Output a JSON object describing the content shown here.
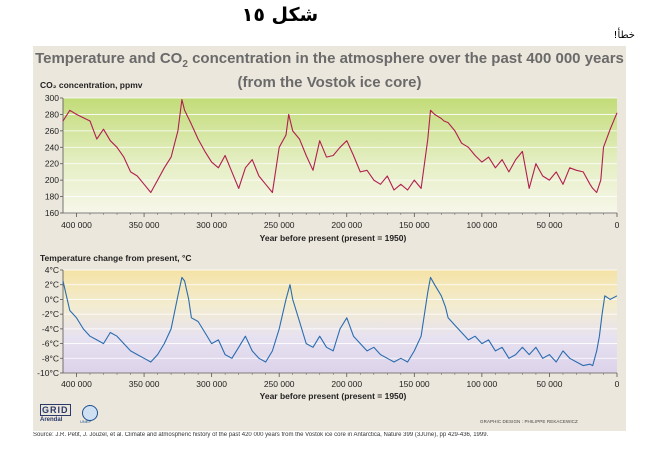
{
  "header": {
    "figure_label": "شكل ١٥",
    "error_label": "خطأ!"
  },
  "figure": {
    "title_line1_pre": "Temperature and CO",
    "title_line1_sub": "2",
    "title_line1_post": " concentration in the atmosphere over the past 400 000 years",
    "title_line2": "(from the Vostok ice core)",
    "source": "Source: J.R. Petit, J. Jouzel, et al. Climate and atmospheric history of the past 420 000 years from the Vostok ice core in Antarctica, Nature 399 (3JUne), pp 429-436, 1999.",
    "credit": "GRAPHIC DESIGN : PHILIPPE REKACEWICZ",
    "logo_grid": "GRID",
    "logo_arendal": "Arendal",
    "logo_unep": "UNEP",
    "colors": {
      "co2_line": "#b21e50",
      "temp_line": "#2a6cb0",
      "text": "#6a6a6a"
    }
  },
  "chart_data": [
    {
      "type": "line",
      "ylabel": "CO₂ concentration, ppmv",
      "xlabel": "Year before present (present = 1950)",
      "xlim": [
        410000,
        0
      ],
      "ylim": [
        160,
        300
      ],
      "yticks": [
        "160",
        "180",
        "200",
        "220",
        "240",
        "260",
        "280",
        "300"
      ],
      "xticks": [
        "400 000",
        "350 000",
        "300 000",
        "250 000",
        "200 000",
        "150 000",
        "100 000",
        "50 000",
        "0"
      ],
      "grid": true,
      "series": [
        {
          "x": [
            410000,
            405000,
            400000,
            395000,
            390000,
            385000,
            380000,
            375000,
            370000,
            365000,
            360000,
            355000,
            350000,
            345000,
            340000,
            335000,
            330000,
            325000,
            322000,
            320000,
            315000,
            310000,
            305000,
            300000,
            295000,
            290000,
            285000,
            280000,
            275000,
            270000,
            265000,
            260000,
            255000,
            250000,
            245000,
            243000,
            240000,
            235000,
            230000,
            225000,
            220000,
            215000,
            210000,
            205000,
            200000,
            195000,
            190000,
            185000,
            180000,
            175000,
            170000,
            165000,
            160000,
            155000,
            150000,
            145000,
            140000,
            138000,
            135000,
            130000,
            128000,
            125000,
            120000,
            115000,
            110000,
            105000,
            100000,
            95000,
            90000,
            85000,
            80000,
            75000,
            70000,
            65000,
            60000,
            55000,
            50000,
            45000,
            40000,
            35000,
            30000,
            25000,
            20000,
            18000,
            15000,
            12000,
            10000,
            5000,
            0
          ],
          "values": [
            272,
            285,
            280,
            276,
            272,
            250,
            262,
            248,
            240,
            228,
            210,
            205,
            195,
            185,
            200,
            215,
            228,
            260,
            298,
            285,
            268,
            250,
            235,
            222,
            215,
            230,
            210,
            190,
            215,
            225,
            205,
            195,
            185,
            240,
            255,
            280,
            260,
            250,
            230,
            212,
            248,
            228,
            230,
            240,
            248,
            230,
            210,
            212,
            200,
            195,
            205,
            188,
            195,
            188,
            200,
            190,
            250,
            285,
            280,
            275,
            272,
            270,
            260,
            245,
            240,
            230,
            222,
            228,
            215,
            225,
            210,
            225,
            235,
            190,
            220,
            205,
            200,
            210,
            195,
            215,
            212,
            210,
            195,
            190,
            185,
            200,
            240,
            262,
            282
          ]
        }
      ]
    },
    {
      "type": "line",
      "ylabel": "Temperature change from present, °C",
      "xlabel": "Year before present (present = 1950)",
      "xlim": [
        410000,
        0
      ],
      "ylim": [
        -10,
        4
      ],
      "yticks": [
        "-10°C",
        "-8°C",
        "-6°C",
        "-4°C",
        "-2°C",
        "0°C",
        "2°C",
        "4°C"
      ],
      "xticks": [
        "400 000",
        "350 000",
        "300 000",
        "250 000",
        "200 000",
        "150 000",
        "100 000",
        "50 000",
        "0"
      ],
      "grid": true,
      "series": [
        {
          "x": [
            410000,
            405000,
            400000,
            395000,
            390000,
            385000,
            380000,
            375000,
            370000,
            365000,
            360000,
            355000,
            350000,
            345000,
            340000,
            335000,
            330000,
            325000,
            322000,
            320000,
            317000,
            315000,
            310000,
            305000,
            300000,
            295000,
            290000,
            285000,
            280000,
            275000,
            270000,
            265000,
            260000,
            255000,
            250000,
            245000,
            242000,
            240000,
            235000,
            230000,
            225000,
            220000,
            215000,
            210000,
            205000,
            200000,
            195000,
            190000,
            185000,
            180000,
            175000,
            170000,
            165000,
            160000,
            155000,
            150000,
            145000,
            140000,
            138000,
            135000,
            130000,
            127000,
            125000,
            120000,
            115000,
            110000,
            105000,
            100000,
            95000,
            90000,
            85000,
            80000,
            75000,
            70000,
            65000,
            60000,
            55000,
            50000,
            45000,
            40000,
            35000,
            30000,
            25000,
            20000,
            18000,
            15000,
            13000,
            11000,
            9000,
            5000,
            0
          ],
          "values": [
            2.5,
            -1.5,
            -2.5,
            -4.0,
            -5.0,
            -5.5,
            -6.0,
            -4.5,
            -5.0,
            -6.0,
            -7.0,
            -7.5,
            -8.0,
            -8.5,
            -7.5,
            -6.0,
            -4.0,
            0.5,
            3.0,
            2.5,
            0.0,
            -2.5,
            -3.0,
            -4.5,
            -6.0,
            -5.5,
            -7.5,
            -8.0,
            -6.5,
            -5.0,
            -7.0,
            -8.0,
            -8.5,
            -7.0,
            -4.0,
            0.0,
            2.0,
            0.0,
            -3.0,
            -6.0,
            -6.5,
            -5.0,
            -6.5,
            -7.0,
            -4.0,
            -2.5,
            -5.0,
            -6.0,
            -7.0,
            -6.5,
            -7.5,
            -8.0,
            -8.5,
            -8.0,
            -8.5,
            -7.0,
            -5.0,
            1.0,
            3.0,
            2.0,
            0.5,
            -1.0,
            -2.5,
            -3.5,
            -4.5,
            -5.5,
            -5.0,
            -6.0,
            -5.5,
            -7.0,
            -6.5,
            -8.0,
            -7.5,
            -6.5,
            -7.5,
            -6.5,
            -8.0,
            -7.5,
            -8.5,
            -7.0,
            -8.0,
            -8.5,
            -9.0,
            -8.8,
            -9.0,
            -7.0,
            -5.0,
            -2.0,
            0.5,
            0.0,
            0.5
          ]
        }
      ]
    }
  ]
}
